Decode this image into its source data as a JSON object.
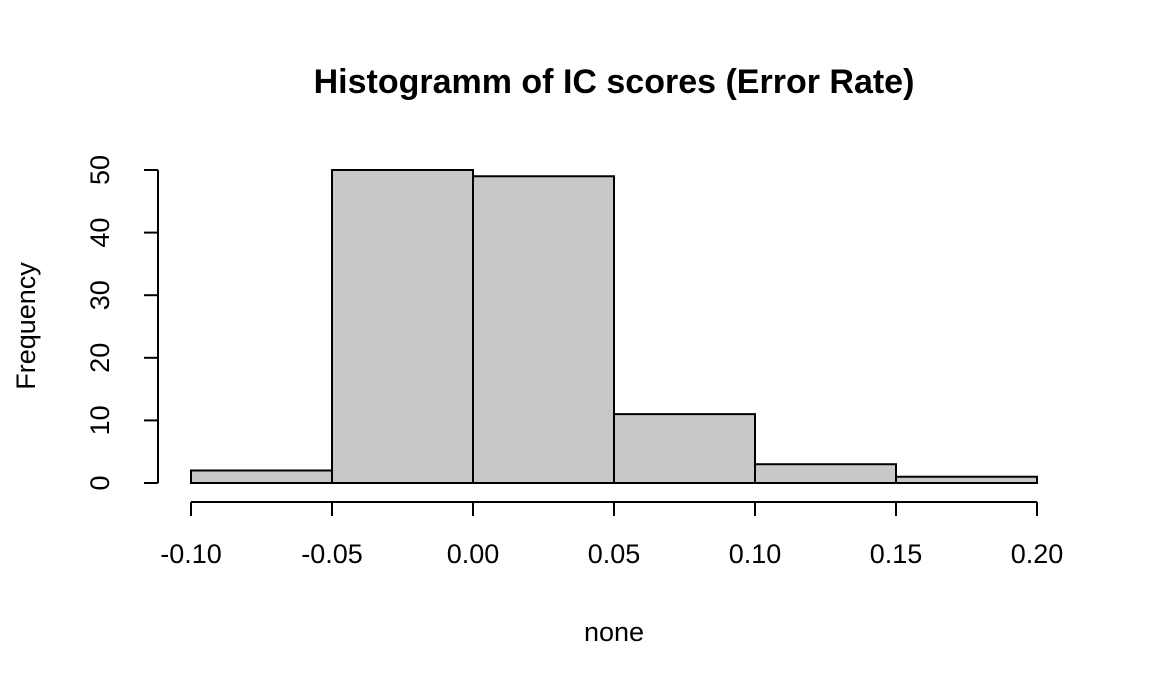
{
  "chart_data": {
    "type": "bar",
    "title": "Histogramm of IC scores (Error Rate)",
    "xlabel": "none",
    "ylabel": "Frequency",
    "bins": [
      {
        "start": -0.1,
        "end": -0.05,
        "count": 2
      },
      {
        "start": -0.05,
        "end": 0.0,
        "count": 50
      },
      {
        "start": 0.0,
        "end": 0.05,
        "count": 49
      },
      {
        "start": 0.05,
        "end": 0.1,
        "count": 11
      },
      {
        "start": 0.1,
        "end": 0.15,
        "count": 3
      },
      {
        "start": 0.15,
        "end": 0.2,
        "count": 1
      }
    ],
    "xlim": [
      -0.1,
      0.2
    ],
    "ylim": [
      0,
      50
    ],
    "x_ticks": [
      -0.1,
      -0.05,
      0.0,
      0.05,
      0.1,
      0.15,
      0.2
    ],
    "x_tick_labels": [
      "-0.10",
      "-0.05",
      "0.00",
      "0.05",
      "0.10",
      "0.15",
      "0.20"
    ],
    "y_ticks": [
      0,
      10,
      20,
      30,
      40,
      50
    ],
    "y_tick_labels": [
      "0",
      "10",
      "20",
      "30",
      "40",
      "50"
    ],
    "bar_color": "#c8c8c8",
    "border_color": "#000000",
    "grid": false,
    "legend": "none"
  }
}
